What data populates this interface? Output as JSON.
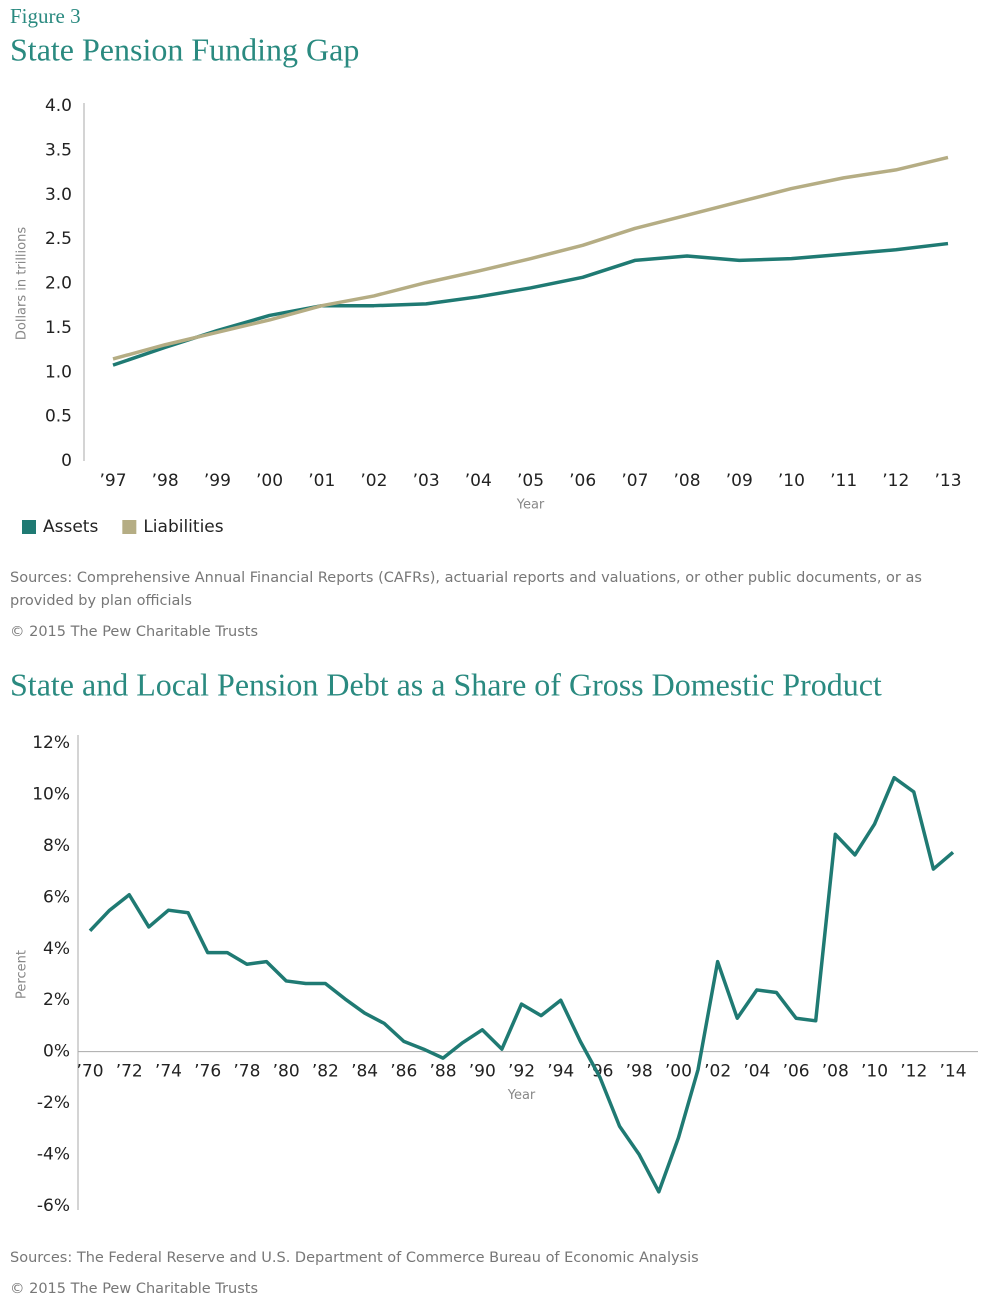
{
  "figure_label": "Figure 3",
  "chart_data": [
    {
      "type": "line",
      "title": "State Pension Funding Gap",
      "xlabel": "Year",
      "ylabel": "Dollars in trillions",
      "categories": [
        "’97",
        "’98",
        "’99",
        "’00",
        "’01",
        "’02",
        "’03",
        "’04",
        "’05",
        "’06",
        "’07",
        "’08",
        "’09",
        "’10",
        "’11",
        "’12",
        "’13"
      ],
      "series": [
        {
          "name": "Assets",
          "color": "#1f7a73",
          "values": [
            1.08,
            1.28,
            1.47,
            1.64,
            1.75,
            1.75,
            1.77,
            1.85,
            1.95,
            2.07,
            2.26,
            2.31,
            2.26,
            2.28,
            2.33,
            2.38,
            2.45
          ]
        },
        {
          "name": "Liabilities",
          "color": "#b5ad84",
          "values": [
            1.15,
            1.31,
            1.45,
            1.59,
            1.75,
            1.86,
            2.01,
            2.14,
            2.28,
            2.43,
            2.62,
            2.77,
            2.92,
            3.07,
            3.19,
            3.28,
            3.42
          ]
        }
      ],
      "ylim": [
        0,
        4
      ],
      "yticks": [
        0,
        0.5,
        {
          "value": 1,
          "label": "1.0"
        },
        1.5,
        {
          "value": 2,
          "label": "2.0"
        },
        2.5,
        {
          "value": 3,
          "label": "3.0"
        },
        3.5,
        {
          "value": 4,
          "label": "4.0"
        }
      ],
      "legend": "bottom-left",
      "source": "Sources: Comprehensive Annual Financial Reports (CAFRs), actuarial reports and valuations, or other public documents, or as provided by plan officials",
      "copyright": "© 2015 The Pew Charitable Trusts"
    },
    {
      "type": "line",
      "title": "State and Local Pension Debt as a Share of Gross Domestic Product",
      "xlabel": "Year",
      "ylabel": "Percent",
      "categories": [
        "’70",
        null,
        "’72",
        null,
        "’74",
        null,
        "’76",
        null,
        "’78",
        null,
        "’80",
        null,
        "’82",
        null,
        "’84",
        null,
        "’86",
        null,
        "’88",
        null,
        "’90",
        null,
        "’92",
        null,
        "’94",
        null,
        "’96",
        null,
        "’98",
        null,
        "’00",
        null,
        "’02",
        null,
        "’04",
        null,
        "’06",
        null,
        "’08",
        null,
        "’10",
        null,
        "’12",
        null,
        "’14"
      ],
      "series": [
        {
          "color": "#1f7a73",
          "values": [
            4.7,
            5.5,
            6.1,
            4.85,
            5.5,
            5.4,
            3.85,
            3.85,
            3.4,
            3.5,
            2.75,
            2.65,
            2.65,
            2.05,
            1.5,
            1.1,
            0.4,
            0.1,
            -0.25,
            0.35,
            0.85,
            0.1,
            1.85,
            1.4,
            2.0,
            0.4,
            -1.0,
            -2.9,
            -4.0,
            -5.45,
            -3.35,
            -0.7,
            3.5,
            1.3,
            2.4,
            2.3,
            1.3,
            1.2,
            8.45,
            7.65,
            8.85,
            10.65,
            10.1,
            7.1,
            7.75
          ]
        }
      ],
      "ylim": [
        -6,
        12
      ],
      "yticks": [
        {
          "value": -6,
          "label": "-6%"
        },
        {
          "value": -4,
          "label": "-4%"
        },
        {
          "value": -2,
          "label": "-2%"
        },
        {
          "value": 0,
          "label": "0%"
        },
        {
          "value": 2,
          "label": "2%"
        },
        {
          "value": 4,
          "label": "4%"
        },
        {
          "value": 6,
          "label": "6%"
        },
        {
          "value": 8,
          "label": "8%"
        },
        {
          "value": 10,
          "label": "10%"
        },
        {
          "value": 12,
          "label": "12%"
        }
      ],
      "source": "Sources: The Federal Reserve and U.S. Department of Commerce Bureau of Economic Analysis",
      "copyright": "© 2015 The Pew Charitable Trusts"
    }
  ]
}
